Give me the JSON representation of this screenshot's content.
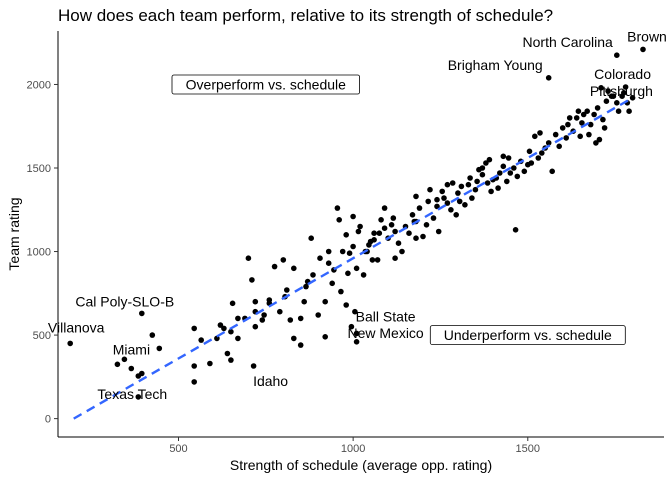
{
  "chart_data": {
    "type": "scatter",
    "title": "How does each team perform, relative to its strength of schedule?",
    "xlabel": "Strength of schedule (average opp. rating)",
    "ylabel": "Team rating",
    "xlim": [
      155,
      1890
    ],
    "ylim": [
      -110,
      2320
    ],
    "xticks": [
      500,
      1000,
      1500
    ],
    "yticks": [
      0,
      500,
      1000,
      1500,
      2000
    ],
    "grid": false,
    "colors": {
      "points": "#000000",
      "trend": "#3366ff"
    },
    "trend_line": {
      "x": [
        200,
        1800
      ],
      "y": [
        0,
        1920
      ]
    },
    "annotations": [
      {
        "text": "Overperform vs. schedule",
        "x": 750,
        "y": 2000
      },
      {
        "text": "Underperform vs. schedule",
        "x": 1500,
        "y": 500
      }
    ],
    "labeled_points": [
      {
        "text": "North Carolina",
        "x": 1755,
        "y": 2175
      },
      {
        "text": "Brown",
        "x": 1830,
        "y": 2210
      },
      {
        "text": "Brigham Young",
        "x": 1560,
        "y": 2040
      },
      {
        "text": "Colorado",
        "x": 1780,
        "y": 1985
      },
      {
        "text": "Pittsburgh",
        "x": 1745,
        "y": 1930
      },
      {
        "text": "Cal Poly-SLO-B",
        "x": 395,
        "y": 630
      },
      {
        "text": "Villanova",
        "x": 190,
        "y": 450
      },
      {
        "text": "Miami",
        "x": 325,
        "y": 325
      },
      {
        "text": "Idaho",
        "x": 715,
        "y": 315
      },
      {
        "text": "Ball State",
        "x": 1010,
        "y": 510
      },
      {
        "text": "New Mexico",
        "x": 1010,
        "y": 460
      },
      {
        "text": "Texas Tech",
        "x": 385,
        "y": 130
      }
    ],
    "points": [
      [
        345,
        355
      ],
      [
        365,
        300
      ],
      [
        385,
        255
      ],
      [
        395,
        270
      ],
      [
        425,
        500
      ],
      [
        445,
        420
      ],
      [
        545,
        220
      ],
      [
        545,
        315
      ],
      [
        545,
        540
      ],
      [
        565,
        470
      ],
      [
        590,
        330
      ],
      [
        610,
        480
      ],
      [
        630,
        540
      ],
      [
        640,
        390
      ],
      [
        650,
        350
      ],
      [
        650,
        520
      ],
      [
        655,
        690
      ],
      [
        670,
        480
      ],
      [
        690,
        600
      ],
      [
        700,
        960
      ],
      [
        710,
        830
      ],
      [
        720,
        700
      ],
      [
        720,
        550
      ],
      [
        740,
        590
      ],
      [
        745,
        620
      ],
      [
        760,
        710
      ],
      [
        775,
        910
      ],
      [
        790,
        640
      ],
      [
        800,
        950
      ],
      [
        805,
        730
      ],
      [
        820,
        590
      ],
      [
        830,
        480
      ],
      [
        830,
        900
      ],
      [
        850,
        440
      ],
      [
        850,
        600
      ],
      [
        860,
        700
      ],
      [
        865,
        790
      ],
      [
        880,
        1080
      ],
      [
        885,
        860
      ],
      [
        900,
        620
      ],
      [
        905,
        960
      ],
      [
        920,
        700
      ],
      [
        920,
        490
      ],
      [
        930,
        1000
      ],
      [
        940,
        810
      ],
      [
        945,
        890
      ],
      [
        955,
        1260
      ],
      [
        960,
        1190
      ],
      [
        965,
        760
      ],
      [
        970,
        1000
      ],
      [
        980,
        680
      ],
      [
        985,
        870
      ],
      [
        995,
        550
      ],
      [
        1000,
        1030
      ],
      [
        1000,
        1210
      ],
      [
        1005,
        640
      ],
      [
        1010,
        900
      ],
      [
        1015,
        1120
      ],
      [
        1020,
        1150
      ],
      [
        1030,
        860
      ],
      [
        1035,
        1000
      ],
      [
        1040,
        1000
      ],
      [
        1045,
        1040
      ],
      [
        1050,
        1060
      ],
      [
        1055,
        950
      ],
      [
        1060,
        1070
      ],
      [
        1070,
        950
      ],
      [
        1075,
        1110
      ],
      [
        1080,
        1190
      ],
      [
        1090,
        1140
      ],
      [
        1100,
        1080
      ],
      [
        1110,
        1160
      ],
      [
        1115,
        1200
      ],
      [
        1120,
        960
      ],
      [
        1130,
        1050
      ],
      [
        1140,
        1000
      ],
      [
        1150,
        1150
      ],
      [
        1160,
        1110
      ],
      [
        1170,
        1220
      ],
      [
        1175,
        1180
      ],
      [
        1180,
        1080
      ],
      [
        1190,
        1260
      ],
      [
        1200,
        1090
      ],
      [
        1210,
        1160
      ],
      [
        1215,
        1300
      ],
      [
        1220,
        1370
      ],
      [
        1230,
        1200
      ],
      [
        1240,
        1270
      ],
      [
        1245,
        1120
      ],
      [
        1255,
        1360
      ],
      [
        1260,
        1320
      ],
      [
        1270,
        1290
      ],
      [
        1280,
        1250
      ],
      [
        1285,
        1410
      ],
      [
        1295,
        1220
      ],
      [
        1300,
        1350
      ],
      [
        1305,
        1300
      ],
      [
        1310,
        1390
      ],
      [
        1320,
        1280
      ],
      [
        1330,
        1400
      ],
      [
        1335,
        1440
      ],
      [
        1340,
        1320
      ],
      [
        1350,
        1370
      ],
      [
        1355,
        1420
      ],
      [
        1360,
        1490
      ],
      [
        1370,
        1460
      ],
      [
        1380,
        1530
      ],
      [
        1385,
        1410
      ],
      [
        1390,
        1550
      ],
      [
        1395,
        1360
      ],
      [
        1400,
        1430
      ],
      [
        1410,
        1440
      ],
      [
        1415,
        1380
      ],
      [
        1420,
        1470
      ],
      [
        1430,
        1510
      ],
      [
        1440,
        1420
      ],
      [
        1445,
        1560
      ],
      [
        1450,
        1470
      ],
      [
        1460,
        1500
      ],
      [
        1465,
        1130
      ],
      [
        1470,
        1450
      ],
      [
        1480,
        1540
      ],
      [
        1490,
        1480
      ],
      [
        1500,
        1520
      ],
      [
        1505,
        1600
      ],
      [
        1510,
        1530
      ],
      [
        1520,
        1690
      ],
      [
        1530,
        1560
      ],
      [
        1535,
        1710
      ],
      [
        1540,
        1590
      ],
      [
        1550,
        1620
      ],
      [
        1560,
        1650
      ],
      [
        1570,
        1480
      ],
      [
        1580,
        1700
      ],
      [
        1590,
        1630
      ],
      [
        1600,
        1740
      ],
      [
        1610,
        1680
      ],
      [
        1615,
        1760
      ],
      [
        1620,
        1800
      ],
      [
        1630,
        1720
      ],
      [
        1640,
        1800
      ],
      [
        1645,
        1840
      ],
      [
        1650,
        1690
      ],
      [
        1655,
        1770
      ],
      [
        1660,
        1820
      ],
      [
        1670,
        1840
      ],
      [
        1675,
        1700
      ],
      [
        1680,
        1760
      ],
      [
        1690,
        1820
      ],
      [
        1695,
        1650
      ],
      [
        1700,
        1860
      ],
      [
        1705,
        1670
      ],
      [
        1710,
        1980
      ],
      [
        1715,
        1790
      ],
      [
        1720,
        1740
      ],
      [
        1725,
        1900
      ],
      [
        1730,
        1960
      ],
      [
        1740,
        1930
      ],
      [
        1755,
        1890
      ],
      [
        1760,
        1840
      ],
      [
        1770,
        1930
      ],
      [
        1775,
        1950
      ],
      [
        1785,
        1890
      ],
      [
        1790,
        1840
      ],
      [
        1800,
        1920
      ],
      [
        1240,
        1310
      ],
      [
        1180,
        1180
      ],
      [
        1120,
        1120
      ],
      [
        1060,
        1110
      ],
      [
        990,
        990
      ],
      [
        930,
        930
      ],
      [
        870,
        820
      ],
      [
        810,
        770
      ],
      [
        760,
        690
      ],
      [
        720,
        640
      ],
      [
        670,
        600
      ],
      [
        620,
        560
      ],
      [
        980,
        1100
      ],
      [
        1090,
        1260
      ],
      [
        1180,
        1330
      ],
      [
        1270,
        1400
      ],
      [
        1370,
        1500
      ],
      [
        1430,
        1570
      ]
    ]
  }
}
